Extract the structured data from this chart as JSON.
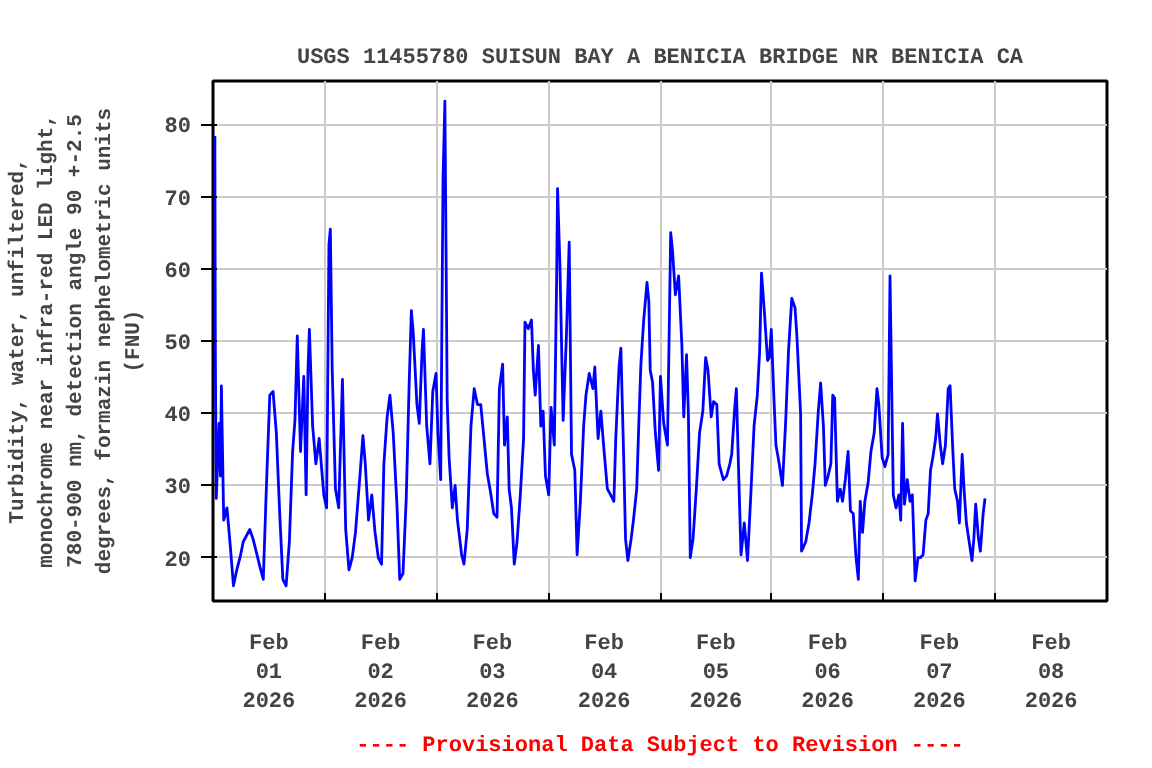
{
  "chart_data": {
    "type": "line",
    "title": "USGS 11455780 SUISUN BAY A BENICIA BRIDGE NR BENICIA CA",
    "ylabel": "Turbidity, water, unfiltered,\nmonochrome near infra-red LED light,\n780-900 nm, detection angle 90 +-2.5\ndegrees, formazin nephelometric units\n(FNU)",
    "annotations": [
      "---- Provisional Data Subject to Revision ----"
    ],
    "xlim": [
      "2026-02-01T00:00",
      "2026-02-09T00:00"
    ],
    "xticks": [
      {
        "value": "2026-02-01T12:00",
        "label": "Feb\n01\n2026"
      },
      {
        "value": "2026-02-02T00:00",
        "label": null
      },
      {
        "value": "2026-02-02T12:00",
        "label": "Feb\n02\n2026"
      },
      {
        "value": "2026-02-03T00:00",
        "label": null
      },
      {
        "value": "2026-02-03T12:00",
        "label": "Feb\n03\n2026"
      },
      {
        "value": "2026-02-04T00:00",
        "label": null
      },
      {
        "value": "2026-02-04T12:00",
        "label": "Feb\n04\n2026"
      },
      {
        "value": "2026-02-05T00:00",
        "label": null
      },
      {
        "value": "2026-02-05T12:00",
        "label": "Feb\n05\n2026"
      },
      {
        "value": "2026-02-06T00:00",
        "label": null
      },
      {
        "value": "2026-02-06T12:00",
        "label": "Feb\n06\n2026"
      },
      {
        "value": "2026-02-07T00:00",
        "label": null
      },
      {
        "value": "2026-02-07T12:00",
        "label": "Feb\n07\n2026"
      },
      {
        "value": "2026-02-08T00:00",
        "label": null
      },
      {
        "value": "2026-02-08T12:00",
        "label": "Feb\n08\n2026"
      }
    ],
    "ylim": [
      14,
      86
    ],
    "yticks": [
      20,
      30,
      40,
      50,
      60,
      70,
      80
    ],
    "grid": true,
    "line_style": "solid",
    "series": [
      {
        "color": "#0000ff",
        "x": [
          "2026-02-01T00:24",
          "2026-02-01T00:30",
          "2026-02-01T00:42",
          "2026-02-01T01:18",
          "2026-02-01T01:36",
          "2026-02-01T01:48",
          "2026-02-01T02:18",
          "2026-02-01T03:00",
          "2026-02-01T03:42",
          "2026-02-01T04:24",
          "2026-02-01T05:06",
          "2026-02-01T05:48",
          "2026-02-01T06:30",
          "2026-02-01T07:54",
          "2026-02-01T08:36",
          "2026-02-01T10:06",
          "2026-02-01T10:48",
          "2026-02-01T11:30",
          "2026-02-01T12:12",
          "2026-02-01T12:54",
          "2026-02-01T13:36",
          "2026-02-01T14:18",
          "2026-02-01T15:00",
          "2026-02-01T15:42",
          "2026-02-01T16:24",
          "2026-02-01T17:06",
          "2026-02-01T17:36",
          "2026-02-01T18:06",
          "2026-02-01T18:48",
          "2026-02-01T19:30",
          "2026-02-01T20:00",
          "2026-02-01T20:24",
          "2026-02-01T20:42",
          "2026-02-01T21:24",
          "2026-02-01T22:06",
          "2026-02-01T22:48",
          "2026-02-01T23:48",
          "2026-02-02T00:24",
          "2026-02-02T00:54",
          "2026-02-02T01:12",
          "2026-02-02T01:36",
          "2026-02-02T02:18",
          "2026-02-02T03:00",
          "2026-02-02T03:48",
          "2026-02-02T04:30",
          "2026-02-02T05:12",
          "2026-02-02T05:54",
          "2026-02-02T06:36",
          "2026-02-02T07:36",
          "2026-02-02T08:12",
          "2026-02-02T08:42",
          "2026-02-02T09:24",
          "2026-02-02T10:06",
          "2026-02-02T10:48",
          "2026-02-02T11:30",
          "2026-02-02T12:12",
          "2026-02-02T12:42",
          "2026-02-02T13:24",
          "2026-02-02T14:00",
          "2026-02-02T14:42",
          "2026-02-02T15:30",
          "2026-02-02T16:06",
          "2026-02-02T16:48",
          "2026-02-02T17:30",
          "2026-02-02T18:06",
          "2026-02-02T18:36",
          "2026-02-02T19:00",
          "2026-02-02T19:48",
          "2026-02-02T20:18",
          "2026-02-02T20:54",
          "2026-02-02T21:12",
          "2026-02-02T21:54",
          "2026-02-02T22:36",
          "2026-02-02T23:12",
          "2026-02-02T23:54",
          "2026-02-03T00:18",
          "2026-02-03T00:54",
          "2026-02-03T01:24",
          "2026-02-03T01:48",
          "2026-02-03T02:18",
          "2026-02-03T02:42",
          "2026-02-03T03:24",
          "2026-02-03T04:00",
          "2026-02-03T04:30",
          "2026-02-03T05:24",
          "2026-02-03T05:54",
          "2026-02-03T06:36",
          "2026-02-03T07:24",
          "2026-02-03T08:06",
          "2026-02-03T08:48",
          "2026-02-03T09:30",
          "2026-02-03T10:12",
          "2026-02-03T10:54",
          "2026-02-03T11:36",
          "2026-02-03T12:18",
          "2026-02-03T13:00",
          "2026-02-03T13:30",
          "2026-02-03T14:12",
          "2026-02-03T14:36",
          "2026-02-03T15:12",
          "2026-02-03T15:36",
          "2026-02-03T16:06",
          "2026-02-03T16:42",
          "2026-02-03T17:18",
          "2026-02-03T18:00",
          "2026-02-03T18:42",
          "2026-02-03T19:00",
          "2026-02-03T19:42",
          "2026-02-03T20:24",
          "2026-02-03T20:48",
          "2026-02-03T21:12",
          "2026-02-03T21:54",
          "2026-02-03T22:24",
          "2026-02-03T22:54",
          "2026-02-03T23:24",
          "2026-02-04T00:06",
          "2026-02-04T00:36",
          "2026-02-04T01:18",
          "2026-02-04T01:48",
          "2026-02-04T02:00",
          "2026-02-04T02:30",
          "2026-02-04T03:12",
          "2026-02-04T03:54",
          "2026-02-04T04:30",
          "2026-02-04T05:00",
          "2026-02-04T05:42",
          "2026-02-04T06:12",
          "2026-02-04T06:54",
          "2026-02-04T07:36",
          "2026-02-04T08:06",
          "2026-02-04T08:48",
          "2026-02-04T09:36",
          "2026-02-04T10:00",
          "2026-02-04T10:42",
          "2026-02-04T11:18",
          "2026-02-04T12:00",
          "2026-02-04T12:42",
          "2026-02-04T13:24",
          "2026-02-04T14:06",
          "2026-02-04T14:30",
          "2026-02-04T15:12",
          "2026-02-04T15:36",
          "2026-02-04T16:12",
          "2026-02-04T16:36",
          "2026-02-04T17:06",
          "2026-02-04T17:48",
          "2026-02-04T18:18",
          "2026-02-04T19:00",
          "2026-02-04T19:30",
          "2026-02-04T19:54",
          "2026-02-04T20:30",
          "2026-02-04T21:12",
          "2026-02-04T21:36",
          "2026-02-04T21:54",
          "2026-02-04T22:24",
          "2026-02-04T23:00",
          "2026-02-04T23:42",
          "2026-02-05T00:06",
          "2026-02-05T00:48",
          "2026-02-05T01:36",
          "2026-02-05T02:18",
          "2026-02-05T02:42",
          "2026-02-05T03:18",
          "2026-02-05T04:00",
          "2026-02-05T04:42",
          "2026-02-05T05:06",
          "2026-02-05T05:42",
          "2026-02-05T06:06",
          "2026-02-05T06:30",
          "2026-02-05T07:06",
          "2026-02-05T07:48",
          "2026-02-05T08:30",
          "2026-02-05T09:12",
          "2026-02-05T09:48",
          "2026-02-05T10:18",
          "2026-02-05T11:00",
          "2026-02-05T11:30",
          "2026-02-05T12:12",
          "2026-02-05T12:42",
          "2026-02-05T13:36",
          "2026-02-05T14:18",
          "2026-02-05T15:00",
          "2026-02-05T15:24",
          "2026-02-05T16:00",
          "2026-02-05T16:24",
          "2026-02-05T16:48",
          "2026-02-05T17:24",
          "2026-02-05T18:06",
          "2026-02-05T18:48",
          "2026-02-05T19:30",
          "2026-02-05T20:12",
          "2026-02-05T20:54",
          "2026-02-05T21:24",
          "2026-02-05T21:48",
          "2026-02-05T22:24",
          "2026-02-05T23:06",
          "2026-02-05T23:30",
          "2026-02-05T23:54",
          "2026-02-06T00:30",
          "2026-02-06T00:54",
          "2026-02-06T01:36",
          "2026-02-06T02:18",
          "2026-02-06T03:00",
          "2026-02-06T03:36",
          "2026-02-06T04:18",
          "2026-02-06T05:00",
          "2026-02-06T05:24",
          "2026-02-06T06:12",
          "2026-02-06T06:24",
          "2026-02-06T07:18",
          "2026-02-06T08:00",
          "2026-02-06T08:42",
          "2026-02-06T09:18",
          "2026-02-06T10:00",
          "2026-02-06T10:30",
          "2026-02-06T11:06",
          "2026-02-06T11:30",
          "2026-02-06T12:06",
          "2026-02-06T12:42",
          "2026-02-06T13:06",
          "2026-02-06T13:30",
          "2026-02-06T14:06",
          "2026-02-06T14:42",
          "2026-02-06T15:12",
          "2026-02-06T15:48",
          "2026-02-06T16:24",
          "2026-02-06T16:54",
          "2026-02-06T17:30",
          "2026-02-06T18:06",
          "2026-02-06T18:36",
          "2026-02-06T19:00",
          "2026-02-06T19:30",
          "2026-02-06T20:00",
          "2026-02-06T20:42",
          "2026-02-06T21:18",
          "2026-02-06T22:00",
          "2026-02-06T22:36",
          "2026-02-06T23:00",
          "2026-02-06T23:42",
          "2026-02-07T00:18",
          "2026-02-07T01:00",
          "2026-02-07T01:24",
          "2026-02-07T01:42",
          "2026-02-07T02:06",
          "2026-02-07T02:42",
          "2026-02-07T03:18",
          "2026-02-07T03:42",
          "2026-02-07T04:06",
          "2026-02-07T04:30",
          "2026-02-07T05:06",
          "2026-02-07T05:42",
          "2026-02-07T06:12",
          "2026-02-07T06:48",
          "2026-02-07T07:24",
          "2026-02-07T07:54",
          "2026-02-07T08:30",
          "2026-02-07T09:06",
          "2026-02-07T09:36",
          "2026-02-07T10:06",
          "2026-02-07T10:36",
          "2026-02-07T11:12",
          "2026-02-07T11:36",
          "2026-02-07T12:12",
          "2026-02-07T12:42",
          "2026-02-07T13:18",
          "2026-02-07T13:54",
          "2026-02-07T14:18",
          "2026-02-07T14:54",
          "2026-02-07T15:18",
          "2026-02-07T15:54",
          "2026-02-07T16:18",
          "2026-02-07T16:54",
          "2026-02-07T17:18",
          "2026-02-07T17:48",
          "2026-02-07T18:24",
          "2026-02-07T19:00",
          "2026-02-07T19:24",
          "2026-02-07T19:48",
          "2026-02-07T20:24",
          "2026-02-07T20:48",
          "2026-02-07T21:24",
          "2026-02-07T21:48"
        ],
        "values": [
          78.4,
          48.6,
          28.2,
          38.6,
          31.3,
          43.8,
          25.2,
          26.9,
          21.7,
          16.1,
          18.3,
          20,
          22.2,
          23.9,
          22.6,
          18.7,
          17,
          30.4,
          42.5,
          43,
          37.3,
          26.5,
          17,
          16.1,
          22.2,
          34.7,
          39,
          50.7,
          34.7,
          45.1,
          28.7,
          46,
          51.6,
          38.2,
          33,
          36.5,
          28.7,
          26.9,
          63.3,
          65.5,
          46,
          29.5,
          26.9,
          44.7,
          23.9,
          18.3,
          20,
          23.5,
          31.7,
          36.9,
          33,
          25.2,
          28.7,
          23.5,
          20,
          19.1,
          33,
          39.5,
          42.5,
          37.3,
          27.4,
          17,
          17.8,
          28.2,
          43.4,
          54.2,
          51.2,
          41.2,
          38.6,
          48.6,
          51.6,
          38.2,
          33,
          43,
          45.5,
          37.3,
          30.8,
          72.4,
          83.2,
          41.6,
          33.9,
          26.9,
          30,
          25.2,
          20.4,
          19.1,
          23.9,
          38.2,
          43.4,
          41.2,
          41.2,
          36.5,
          31.7,
          29.1,
          26.1,
          25.6,
          43.4,
          46.8,
          35.6,
          39.5,
          29.5,
          26.9,
          19.1,
          22.2,
          28.7,
          36.5,
          52.6,
          51.7,
          52.9,
          46,
          42.5,
          49.4,
          38.2,
          40.3,
          31.3,
          28.7,
          40.8,
          35.6,
          58.5,
          71.1,
          60.7,
          39,
          50.7,
          63.7,
          34.3,
          32.1,
          20.4,
          27.8,
          38.2,
          42.5,
          45.5,
          43.4,
          46.4,
          36.5,
          40.3,
          34.7,
          29.5,
          28.7,
          27.8,
          36.5,
          46.4,
          49,
          33.9,
          22.6,
          19.6,
          22.6,
          25.2,
          29.5,
          39.5,
          46.8,
          52.9,
          58.1,
          55.5,
          46,
          44.3,
          37.3,
          32.1,
          45.1,
          38.6,
          35.6,
          65,
          62.4,
          56.4,
          59,
          49.4,
          39.5,
          48.1,
          39.9,
          20,
          22.6,
          29.5,
          37.3,
          40.3,
          47.7,
          46,
          39.5,
          41.6,
          41.2,
          33,
          30.8,
          31.3,
          33,
          34.3,
          40.3,
          43.4,
          33.9,
          20.4,
          24.8,
          19.6,
          28.7,
          38.2,
          42.5,
          48.6,
          59.4,
          54.2,
          47.3,
          47.7,
          51.6,
          41.6,
          35.6,
          33,
          30,
          39,
          48.6,
          55.9,
          54.6,
          50.7,
          39.9,
          20.9,
          22.2,
          24.8,
          28.7,
          33,
          40.3,
          44.2,
          38.2,
          30,
          31.3,
          33,
          42.5,
          42.1,
          27.8,
          29.5,
          27.8,
          30.8,
          34.7,
          26.5,
          26.1,
          20,
          17,
          27.8,
          23.5,
          27.8,
          30.4,
          34.7,
          37.3,
          43.4,
          41.2,
          33.9,
          32.6,
          34.3,
          59,
          46,
          28.7,
          26.9,
          28.7,
          25.2,
          38.6,
          27.4,
          30.8,
          27.8,
          28.7,
          16.8,
          20,
          20,
          20.4,
          25.2,
          26.1,
          32.1,
          33.9,
          36.5,
          39.9,
          35.6,
          33,
          35.6,
          43.4,
          43.8,
          34.7,
          29.5,
          27.8,
          24.8,
          34.3,
          29.5,
          24.8,
          22.2,
          19.6,
          22.6,
          27.4,
          22.6,
          20.9,
          26.1,
          28.2
        ]
      }
    ]
  }
}
